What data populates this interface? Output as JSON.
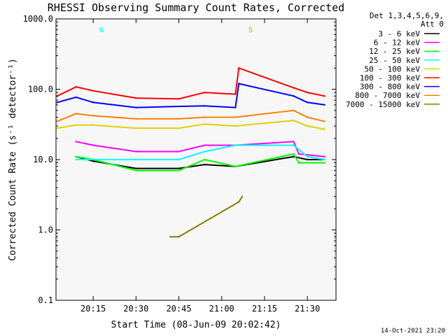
{
  "chart_data": {
    "type": "line",
    "title": "RHESSI Observing Summary Count Rates, Corrected",
    "xlabel": "Start Time (08-Jun-09 20:02:42)",
    "ylabel": "Corrected Count Rate (s⁻¹ detector⁻¹)",
    "y_scale": "log",
    "ylim": [
      0.1,
      1000
    ],
    "xlim_minutes": [
      20.033,
      21.667
    ],
    "x_ticks": [
      {
        "hour": 20.25,
        "label": "20:15"
      },
      {
        "hour": 20.5,
        "label": "20:30"
      },
      {
        "hour": 20.75,
        "label": "20:45"
      },
      {
        "hour": 21.0,
        "label": "21:00"
      },
      {
        "hour": 21.25,
        "label": "21:15"
      },
      {
        "hour": 21.5,
        "label": "21:30"
      }
    ],
    "y_ticks": [
      {
        "value": 0.1,
        "label": "0.1"
      },
      {
        "value": 1,
        "label": "1.0"
      },
      {
        "value": 10,
        "label": "10.0"
      },
      {
        "value": 100,
        "label": "100.0"
      },
      {
        "value": 1000,
        "label": "1000.0"
      }
    ],
    "legend_header": [
      "Det 1,3,4,5,6,9,",
      "Att 0"
    ],
    "legend_position": "right",
    "series": [
      {
        "name": "3 - 6 keV",
        "color": "#000000",
        "x": [
          20.15,
          20.25,
          20.5,
          20.75,
          20.9,
          21.08,
          21.42,
          21.5,
          21.6
        ],
        "y": [
          11,
          9.5,
          7.5,
          7.5,
          8.5,
          8,
          11,
          10,
          10
        ]
      },
      {
        "name": "6 - 12 keV",
        "color": "#ff00ff",
        "x": [
          20.15,
          20.25,
          20.5,
          20.75,
          20.9,
          21.08,
          21.42,
          21.45,
          21.6
        ],
        "y": [
          18,
          16,
          13,
          13,
          16,
          16,
          18,
          12,
          11
        ]
      },
      {
        "name": "12 - 25 keV",
        "color": "#00ff00",
        "x": [
          20.15,
          20.25,
          20.5,
          20.75,
          20.9,
          21.08,
          21.42,
          21.45,
          21.6
        ],
        "y": [
          11,
          10,
          7,
          7,
          10,
          8,
          12,
          9,
          9
        ]
      },
      {
        "name": "25 - 50 keV",
        "color": "#00ffff",
        "x": [
          20.15,
          20.25,
          20.5,
          20.75,
          20.9,
          21.08,
          21.42,
          21.5,
          21.6
        ],
        "y": [
          10,
          10,
          10,
          10,
          13,
          16,
          16,
          11,
          10
        ]
      },
      {
        "name": "50 - 100 keV",
        "color": "#e0d000",
        "x": [
          20.04,
          20.15,
          20.25,
          20.5,
          20.75,
          20.9,
          21.08,
          21.42,
          21.5,
          21.6
        ],
        "y": [
          28,
          31,
          31,
          28,
          28,
          32,
          30,
          36,
          30,
          27
        ]
      },
      {
        "name": "100 - 300 keV",
        "color": "#ff0000",
        "x": [
          20.04,
          20.15,
          20.25,
          20.5,
          20.75,
          20.9,
          21.08,
          21.1,
          21.42,
          21.5,
          21.6
        ],
        "y": [
          80,
          108,
          95,
          75,
          73,
          90,
          85,
          200,
          105,
          90,
          80
        ]
      },
      {
        "name": "300 - 800 keV",
        "color": "#0000ff",
        "x": [
          20.04,
          20.15,
          20.25,
          20.5,
          20.75,
          20.9,
          21.08,
          21.1,
          21.42,
          21.5,
          21.6
        ],
        "y": [
          65,
          77,
          65,
          55,
          57,
          58,
          55,
          120,
          80,
          65,
          60
        ]
      },
      {
        "name": "800 - 7000 keV",
        "color": "#ff8000",
        "x": [
          20.04,
          20.15,
          20.25,
          20.5,
          20.75,
          20.9,
          21.08,
          21.42,
          21.5,
          21.6
        ],
        "y": [
          35,
          45,
          42,
          38,
          38,
          40,
          40,
          50,
          40,
          35
        ]
      },
      {
        "name": "7000 - 15000 keV",
        "color": "#808000",
        "x": [
          20.7,
          20.75,
          21.1,
          21.12
        ],
        "y": [
          0.8,
          0.8,
          2.5,
          3
        ]
      }
    ],
    "annotations": [
      {
        "label": "N",
        "color": "#00ffff",
        "x_hour": 20.27
      },
      {
        "label": "S",
        "color": "#ff8000",
        "x_hour": 21.14
      }
    ],
    "footer_date": "14-Oct-2021 23:20"
  }
}
